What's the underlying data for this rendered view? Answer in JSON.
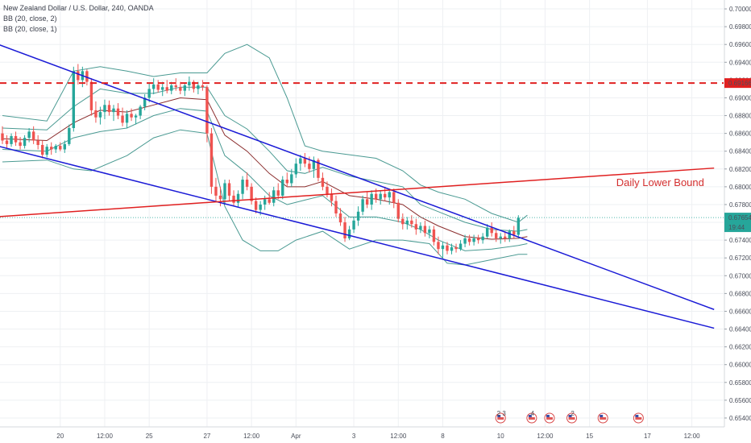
{
  "legend": {
    "symbol": "New Zealand Dollar / U.S. Dollar, 240, OANDA",
    "bb_upper": "BB (20, close, 2)",
    "bb_lower": "BB (20, close, 1)"
  },
  "colors": {
    "up": "#26a69a",
    "down": "#ef5350",
    "band": "#4a9a92",
    "basis": "#8b2d2d",
    "trend": "#1a1ad6",
    "level": "#e02020",
    "price_line": "#26a69a",
    "grid": "#eef0f3"
  },
  "chart_data": {
    "type": "candlestick",
    "instrument": "New Zealand Dollar / U.S. Dollar, 240, OANDA",
    "ylim": [
      0.653,
      0.701
    ],
    "yticks": [
      "0.70000",
      "0.69800",
      "0.69600",
      "0.69400",
      "0.69200",
      "0.69000",
      "0.68800",
      "0.68600",
      "0.68400",
      "0.68200",
      "0.68000",
      "0.67800",
      "0.67600",
      "0.67400",
      "0.67200",
      "0.67000",
      "0.66800",
      "0.66600",
      "0.66400",
      "0.66200",
      "0.66000",
      "0.65800",
      "0.65600",
      "0.65400"
    ],
    "xticks": [
      {
        "label": "20",
        "i": 13
      },
      {
        "label": "12:00",
        "i": 23
      },
      {
        "label": "25",
        "i": 33
      },
      {
        "label": "27",
        "i": 46
      },
      {
        "label": "12:00",
        "i": 56
      },
      {
        "label": "Apr",
        "i": 66
      },
      {
        "label": "3",
        "i": 79
      },
      {
        "label": "12:00",
        "i": 89
      },
      {
        "label": "8",
        "i": 99
      },
      {
        "label": "10",
        "i": 112
      },
      {
        "label": "12:00",
        "i": 122
      },
      {
        "label": "15",
        "i": 132
      },
      {
        "label": "17",
        "i": 145
      },
      {
        "label": "12:00",
        "i": 155
      }
    ],
    "x_slots": 160,
    "candles": [
      [
        0.686,
        0.6868,
        0.6848,
        0.6852
      ],
      [
        0.6852,
        0.6858,
        0.6843,
        0.6848
      ],
      [
        0.6848,
        0.686,
        0.6845,
        0.6857
      ],
      [
        0.6857,
        0.6862,
        0.6846,
        0.685
      ],
      [
        0.685,
        0.6856,
        0.6842,
        0.6846
      ],
      [
        0.6846,
        0.6858,
        0.6843,
        0.6855
      ],
      [
        0.6855,
        0.6866,
        0.685,
        0.6862
      ],
      [
        0.6862,
        0.6868,
        0.6848,
        0.6852
      ],
      [
        0.6852,
        0.6858,
        0.6842,
        0.6847
      ],
      [
        0.6847,
        0.6852,
        0.6832,
        0.6836
      ],
      [
        0.6836,
        0.6848,
        0.6833,
        0.6845
      ],
      [
        0.6845,
        0.685,
        0.6836,
        0.6842
      ],
      [
        0.6842,
        0.6848,
        0.6838,
        0.6846
      ],
      [
        0.6846,
        0.685,
        0.684,
        0.6842
      ],
      [
        0.6842,
        0.6852,
        0.6838,
        0.6848
      ],
      [
        0.6848,
        0.687,
        0.6846,
        0.6866
      ],
      [
        0.6866,
        0.6935,
        0.6862,
        0.693
      ],
      [
        0.693,
        0.6938,
        0.6915,
        0.692
      ],
      [
        0.692,
        0.6935,
        0.6912,
        0.693
      ],
      [
        0.693,
        0.6932,
        0.6914,
        0.6918
      ],
      [
        0.6918,
        0.6922,
        0.688,
        0.6886
      ],
      [
        0.6886,
        0.6896,
        0.6872,
        0.6878
      ],
      [
        0.6878,
        0.689,
        0.687,
        0.6884
      ],
      [
        0.6884,
        0.6898,
        0.6876,
        0.6892
      ],
      [
        0.6892,
        0.6897,
        0.688,
        0.6884
      ],
      [
        0.6884,
        0.6892,
        0.6874,
        0.6888
      ],
      [
        0.6888,
        0.6894,
        0.6876,
        0.688
      ],
      [
        0.688,
        0.6889,
        0.6868,
        0.6872
      ],
      [
        0.6872,
        0.6886,
        0.6866,
        0.6882
      ],
      [
        0.6882,
        0.6888,
        0.6874,
        0.6878
      ],
      [
        0.6878,
        0.6882,
        0.687,
        0.688
      ],
      [
        0.688,
        0.6892,
        0.6876,
        0.689
      ],
      [
        0.689,
        0.6904,
        0.6886,
        0.69
      ],
      [
        0.69,
        0.6916,
        0.6895,
        0.691
      ],
      [
        0.691,
        0.6922,
        0.6904,
        0.6915
      ],
      [
        0.6915,
        0.692,
        0.6906,
        0.6909
      ],
      [
        0.6909,
        0.6918,
        0.6902,
        0.6912
      ],
      [
        0.6912,
        0.692,
        0.6905,
        0.6908
      ],
      [
        0.6908,
        0.6918,
        0.6904,
        0.6914
      ],
      [
        0.6914,
        0.6922,
        0.6908,
        0.6912
      ],
      [
        0.6912,
        0.6918,
        0.6904,
        0.6908
      ],
      [
        0.6908,
        0.6916,
        0.6902,
        0.6914
      ],
      [
        0.6914,
        0.6924,
        0.6908,
        0.6918
      ],
      [
        0.6918,
        0.692,
        0.6906,
        0.691
      ],
      [
        0.691,
        0.6918,
        0.6904,
        0.6914
      ],
      [
        0.6914,
        0.692,
        0.6908,
        0.6912
      ],
      [
        0.6912,
        0.6914,
        0.685,
        0.686
      ],
      [
        0.686,
        0.6866,
        0.6792,
        0.68
      ],
      [
        0.68,
        0.681,
        0.6784,
        0.679
      ],
      [
        0.679,
        0.68,
        0.6778,
        0.6786
      ],
      [
        0.6786,
        0.6808,
        0.678,
        0.6804
      ],
      [
        0.6804,
        0.6808,
        0.6784,
        0.679
      ],
      [
        0.679,
        0.6796,
        0.6778,
        0.6782
      ],
      [
        0.6782,
        0.6796,
        0.6777,
        0.6792
      ],
      [
        0.6792,
        0.6812,
        0.6786,
        0.6808
      ],
      [
        0.6808,
        0.6816,
        0.6796,
        0.68
      ],
      [
        0.68,
        0.6804,
        0.678,
        0.6784
      ],
      [
        0.6784,
        0.6788,
        0.677,
        0.6774
      ],
      [
        0.6774,
        0.6784,
        0.6768,
        0.678
      ],
      [
        0.678,
        0.679,
        0.6774,
        0.6786
      ],
      [
        0.6786,
        0.6794,
        0.678,
        0.6782
      ],
      [
        0.6782,
        0.68,
        0.6778,
        0.6796
      ],
      [
        0.6796,
        0.6804,
        0.6786,
        0.679
      ],
      [
        0.679,
        0.6812,
        0.6786,
        0.6808
      ],
      [
        0.6808,
        0.6816,
        0.68,
        0.6804
      ],
      [
        0.6804,
        0.682,
        0.68,
        0.6814
      ],
      [
        0.6814,
        0.6832,
        0.681,
        0.6826
      ],
      [
        0.6826,
        0.6836,
        0.6818,
        0.6832
      ],
      [
        0.6832,
        0.6838,
        0.6822,
        0.6826
      ],
      [
        0.6826,
        0.6834,
        0.6816,
        0.682
      ],
      [
        0.682,
        0.6834,
        0.681,
        0.683
      ],
      [
        0.683,
        0.6832,
        0.6806,
        0.681
      ],
      [
        0.681,
        0.6816,
        0.6796,
        0.68
      ],
      [
        0.68,
        0.6806,
        0.6788,
        0.6792
      ],
      [
        0.6792,
        0.6798,
        0.6778,
        0.6784
      ],
      [
        0.6784,
        0.679,
        0.6766,
        0.677
      ],
      [
        0.677,
        0.6776,
        0.6756,
        0.676
      ],
      [
        0.676,
        0.6766,
        0.6738,
        0.6742
      ],
      [
        0.6742,
        0.6756,
        0.674,
        0.6752
      ],
      [
        0.6752,
        0.6766,
        0.6748,
        0.6762
      ],
      [
        0.6762,
        0.6778,
        0.6756,
        0.6772
      ],
      [
        0.6772,
        0.679,
        0.6768,
        0.6786
      ],
      [
        0.6786,
        0.6794,
        0.6776,
        0.678
      ],
      [
        0.678,
        0.6796,
        0.6774,
        0.6792
      ],
      [
        0.6792,
        0.6798,
        0.6782,
        0.6786
      ],
      [
        0.6786,
        0.6796,
        0.678,
        0.6792
      ],
      [
        0.6792,
        0.68,
        0.6784,
        0.6788
      ],
      [
        0.6788,
        0.6796,
        0.678,
        0.6794
      ],
      [
        0.6794,
        0.6798,
        0.6776,
        0.6782
      ],
      [
        0.6782,
        0.6786,
        0.676,
        0.6764
      ],
      [
        0.6764,
        0.677,
        0.6752,
        0.6758
      ],
      [
        0.6758,
        0.6766,
        0.6752,
        0.6762
      ],
      [
        0.6762,
        0.6768,
        0.6754,
        0.6758
      ],
      [
        0.6758,
        0.6764,
        0.6746,
        0.6752
      ],
      [
        0.6752,
        0.676,
        0.6748,
        0.6756
      ],
      [
        0.6756,
        0.6762,
        0.6744,
        0.6748
      ],
      [
        0.6748,
        0.6756,
        0.6742,
        0.6752
      ],
      [
        0.6752,
        0.6756,
        0.6734,
        0.6738
      ],
      [
        0.6738,
        0.6744,
        0.6724,
        0.673
      ],
      [
        0.673,
        0.6738,
        0.672,
        0.6734
      ],
      [
        0.6734,
        0.6738,
        0.6724,
        0.6728
      ],
      [
        0.6728,
        0.6736,
        0.6724,
        0.6732
      ],
      [
        0.6732,
        0.6736,
        0.6726,
        0.673
      ],
      [
        0.673,
        0.674,
        0.6728,
        0.6736
      ],
      [
        0.6736,
        0.6746,
        0.6732,
        0.6742
      ],
      [
        0.6742,
        0.6746,
        0.6734,
        0.6738
      ],
      [
        0.6738,
        0.6746,
        0.6734,
        0.6742
      ],
      [
        0.6742,
        0.6746,
        0.6736,
        0.674
      ],
      [
        0.674,
        0.6748,
        0.6736,
        0.6744
      ],
      [
        0.6744,
        0.6758,
        0.6742,
        0.6754
      ],
      [
        0.6754,
        0.676,
        0.6744,
        0.6748
      ],
      [
        0.6748,
        0.6752,
        0.6738,
        0.6742
      ],
      [
        0.6742,
        0.6748,
        0.6736,
        0.6744
      ],
      [
        0.6744,
        0.675,
        0.6738,
        0.6742
      ],
      [
        0.6742,
        0.6752,
        0.6738,
        0.675
      ],
      [
        0.675,
        0.6756,
        0.6742,
        0.6746
      ],
      [
        0.6746,
        0.6768,
        0.6742,
        0.6765
      ]
    ],
    "bb_outer_upper": [
      [
        0,
        0.688
      ],
      [
        10,
        0.6874
      ],
      [
        16,
        0.693
      ],
      [
        22,
        0.6935
      ],
      [
        28,
        0.693
      ],
      [
        34,
        0.6924
      ],
      [
        40,
        0.6928
      ],
      [
        46,
        0.6928
      ],
      [
        50,
        0.695
      ],
      [
        55,
        0.696
      ],
      [
        60,
        0.6945
      ],
      [
        64,
        0.69
      ],
      [
        68,
        0.6846
      ],
      [
        72,
        0.684
      ],
      [
        78,
        0.6836
      ],
      [
        84,
        0.6832
      ],
      [
        90,
        0.6818
      ],
      [
        94,
        0.6802
      ],
      [
        98,
        0.6794
      ],
      [
        104,
        0.6786
      ],
      [
        110,
        0.677
      ],
      [
        116,
        0.676
      ],
      [
        118,
        0.6768
      ]
    ],
    "bb_outer_lower": [
      [
        0,
        0.6828
      ],
      [
        10,
        0.683
      ],
      [
        16,
        0.682
      ],
      [
        20,
        0.6818
      ],
      [
        28,
        0.6835
      ],
      [
        34,
        0.6855
      ],
      [
        40,
        0.6864
      ],
      [
        46,
        0.686
      ],
      [
        50,
        0.6778
      ],
      [
        54,
        0.674
      ],
      [
        58,
        0.6728
      ],
      [
        62,
        0.6728
      ],
      [
        66,
        0.674
      ],
      [
        72,
        0.675
      ],
      [
        78,
        0.673
      ],
      [
        84,
        0.674
      ],
      [
        90,
        0.674
      ],
      [
        96,
        0.6736
      ],
      [
        100,
        0.6714
      ],
      [
        104,
        0.6712
      ],
      [
        110,
        0.6718
      ],
      [
        116,
        0.6724
      ],
      [
        118,
        0.6724
      ]
    ],
    "bb_inner_upper": [
      [
        0,
        0.6866
      ],
      [
        10,
        0.6864
      ],
      [
        16,
        0.689
      ],
      [
        22,
        0.691
      ],
      [
        28,
        0.6905
      ],
      [
        34,
        0.6905
      ],
      [
        40,
        0.6912
      ],
      [
        46,
        0.6912
      ],
      [
        50,
        0.688
      ],
      [
        55,
        0.6865
      ],
      [
        60,
        0.684
      ],
      [
        64,
        0.6818
      ],
      [
        68,
        0.6815
      ],
      [
        72,
        0.6822
      ],
      [
        78,
        0.6812
      ],
      [
        84,
        0.6806
      ],
      [
        90,
        0.68
      ],
      [
        94,
        0.678
      ],
      [
        98,
        0.6772
      ],
      [
        104,
        0.676
      ],
      [
        110,
        0.6752
      ],
      [
        116,
        0.675
      ],
      [
        118,
        0.6752
      ]
    ],
    "bb_inner_lower": [
      [
        0,
        0.6842
      ],
      [
        10,
        0.684
      ],
      [
        16,
        0.6855
      ],
      [
        22,
        0.6862
      ],
      [
        28,
        0.6866
      ],
      [
        34,
        0.688
      ],
      [
        40,
        0.6888
      ],
      [
        46,
        0.6885
      ],
      [
        50,
        0.6835
      ],
      [
        55,
        0.6815
      ],
      [
        60,
        0.679
      ],
      [
        64,
        0.678
      ],
      [
        68,
        0.6785
      ],
      [
        72,
        0.679
      ],
      [
        78,
        0.6766
      ],
      [
        84,
        0.6766
      ],
      [
        90,
        0.676
      ],
      [
        94,
        0.6752
      ],
      [
        98,
        0.674
      ],
      [
        104,
        0.6728
      ],
      [
        110,
        0.673
      ],
      [
        116,
        0.6734
      ],
      [
        118,
        0.6736
      ]
    ],
    "bb_basis": [
      [
        0,
        0.6854
      ],
      [
        10,
        0.6852
      ],
      [
        16,
        0.6872
      ],
      [
        22,
        0.6886
      ],
      [
        28,
        0.6884
      ],
      [
        34,
        0.6892
      ],
      [
        40,
        0.69
      ],
      [
        46,
        0.6898
      ],
      [
        50,
        0.6858
      ],
      [
        55,
        0.684
      ],
      [
        60,
        0.6815
      ],
      [
        64,
        0.68
      ],
      [
        68,
        0.68
      ],
      [
        72,
        0.6806
      ],
      [
        78,
        0.679
      ],
      [
        84,
        0.6786
      ],
      [
        90,
        0.678
      ],
      [
        94,
        0.6766
      ],
      [
        98,
        0.6756
      ],
      [
        104,
        0.6744
      ],
      [
        110,
        0.6741
      ],
      [
        116,
        0.6742
      ],
      [
        118,
        0.6744
      ]
    ],
    "trend_lines": [
      {
        "name": "upper-trendline",
        "from": [
          -2,
          0.6962
        ],
        "to": [
          160,
          0.6662
        ]
      },
      {
        "name": "lower-trendline",
        "from": [
          -2,
          0.6847
        ],
        "to": [
          160,
          0.6641
        ]
      },
      {
        "name": "daily-lower-bound",
        "from": [
          -2,
          0.6766
        ],
        "to": [
          160,
          0.6821
        ]
      }
    ],
    "horizontal_levels": [
      {
        "name": "resistance-level",
        "value": 0.69166,
        "label": "0.69166"
      }
    ],
    "last_price": {
      "value": 0.67654,
      "label": "0.67654",
      "countdown": "19:44"
    },
    "annotation": {
      "text": "Daily Lower Bound",
      "x": 138,
      "y": 0.6801
    },
    "event_icons": [
      {
        "i": 112,
        "text": "2 3"
      },
      {
        "i": 119,
        "text": "4"
      },
      {
        "i": 123,
        "text": ""
      },
      {
        "i": 128,
        "text": "2"
      },
      {
        "i": 135,
        "text": ""
      },
      {
        "i": 143,
        "text": ""
      }
    ]
  }
}
